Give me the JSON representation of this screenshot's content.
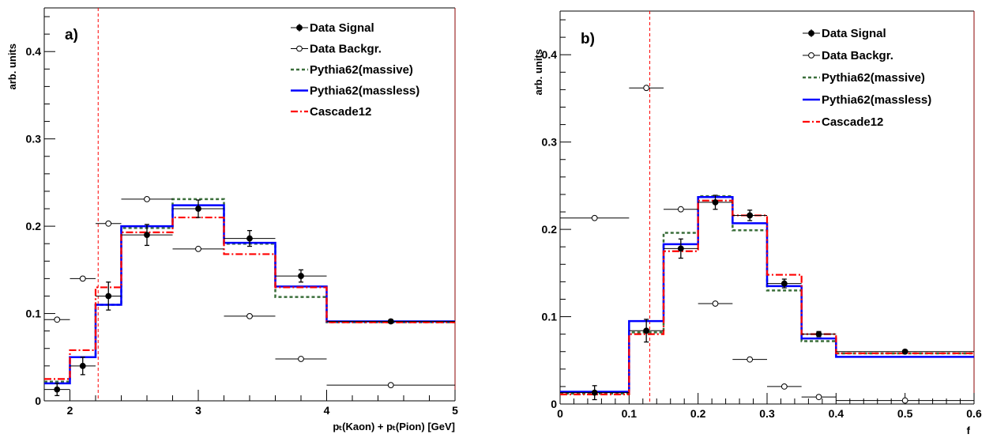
{
  "chart_data": [
    {
      "panel_label": "a)",
      "type": "line",
      "xlabel": "pₜ(Kaon) + pₜ(Pion) [GeV]",
      "ylabel": "arb. units",
      "xlim": [
        1.8,
        5
      ],
      "ylim": [
        0,
        0.45
      ],
      "x_ticks": [
        2,
        3,
        4,
        5
      ],
      "y_ticks": [
        0,
        0.1,
        0.2,
        0.3,
        0.4
      ],
      "x_tick_labels": [
        "2",
        "3",
        "4",
        "5"
      ],
      "y_tick_labels": [
        "0",
        "0.1",
        "0.2",
        "0.3",
        "0.4"
      ],
      "cut_line_x": 2.22,
      "bin_edges": [
        1.8,
        2.0,
        2.2,
        2.4,
        2.8,
        3.2,
        3.6,
        4.0,
        5.0
      ],
      "legend": {
        "position": "top-right",
        "entries": [
          "Data Signal",
          "Data Backgr.",
          "Pythia62(massive)",
          "Pythia62(massless)",
          "Cascade12"
        ]
      },
      "series": [
        {
          "name": "Data Signal",
          "style": "filled-marker",
          "color": "#000000",
          "points": [
            {
              "x": 1.9,
              "y": 0.013,
              "xerr": 0.1,
              "yerr": 0.007
            },
            {
              "x": 2.1,
              "y": 0.04,
              "xerr": 0.1,
              "yerr": 0.01
            },
            {
              "x": 2.3,
              "y": 0.12,
              "xerr": 0.1,
              "yerr": 0.016
            },
            {
              "x": 2.6,
              "y": 0.19,
              "xerr": 0.2,
              "yerr": 0.012
            },
            {
              "x": 3.0,
              "y": 0.22,
              "xerr": 0.2,
              "yerr": 0.01
            },
            {
              "x": 3.4,
              "y": 0.186,
              "xerr": 0.2,
              "yerr": 0.009
            },
            {
              "x": 3.8,
              "y": 0.143,
              "xerr": 0.2,
              "yerr": 0.007
            },
            {
              "x": 4.5,
              "y": 0.091,
              "xerr": 0.5,
              "yerr": 0.002
            }
          ]
        },
        {
          "name": "Data Backgr.",
          "style": "open-marker",
          "color": "#000000",
          "points": [
            {
              "x": 1.9,
              "y": 0.093,
              "xerr": 0.1
            },
            {
              "x": 2.1,
              "y": 0.14,
              "xerr": 0.1
            },
            {
              "x": 2.3,
              "y": 0.203,
              "xerr": 0.1
            },
            {
              "x": 2.6,
              "y": 0.231,
              "xerr": 0.2
            },
            {
              "x": 3.0,
              "y": 0.174,
              "xerr": 0.2
            },
            {
              "x": 3.4,
              "y": 0.097,
              "xerr": 0.2
            },
            {
              "x": 3.8,
              "y": 0.048,
              "xerr": 0.2
            },
            {
              "x": 4.5,
              "y": 0.018,
              "xerr": 0.5
            }
          ]
        },
        {
          "name": "Pythia62(massive)",
          "style": "dotted-hist",
          "color": "#3a6e3a",
          "values": [
            0.022,
            0.05,
            0.11,
            0.198,
            0.231,
            0.18,
            0.119,
            0.09
          ]
        },
        {
          "name": "Pythia62(massless)",
          "style": "solid-hist",
          "color": "#0000ff",
          "values": [
            0.02,
            0.05,
            0.11,
            0.2,
            0.224,
            0.181,
            0.131,
            0.091
          ]
        },
        {
          "name": "Cascade12",
          "style": "dashdot-hist",
          "color": "#ff0000",
          "values": [
            0.025,
            0.058,
            0.13,
            0.193,
            0.21,
            0.168,
            0.13,
            0.09
          ]
        }
      ]
    },
    {
      "panel_label": "b)",
      "type": "line",
      "xlabel": "f",
      "ylabel": "arb. units",
      "xlim": [
        0,
        0.6
      ],
      "ylim": [
        0,
        0.45
      ],
      "x_ticks": [
        0,
        0.1,
        0.2,
        0.3,
        0.4,
        0.5,
        0.6
      ],
      "y_ticks": [
        0,
        0.1,
        0.2,
        0.3,
        0.4
      ],
      "x_tick_labels": [
        "0",
        "0.1",
        "0.2",
        "0.3",
        "0.4",
        "0.5",
        "0.6"
      ],
      "y_tick_labels": [
        "0",
        "0.1",
        "0.2",
        "0.3",
        "0.4"
      ],
      "cut_line_x": 0.13,
      "bin_edges": [
        0,
        0.1,
        0.15,
        0.2,
        0.25,
        0.3,
        0.35,
        0.4,
        0.6
      ],
      "legend": {
        "position": "top-right",
        "entries": [
          "Data Signal",
          "Data Backgr.",
          "Pythia62(massive)",
          "Pythia62(massless)",
          "Cascade12"
        ]
      },
      "series": [
        {
          "name": "Data Signal",
          "style": "filled-marker",
          "color": "#000000",
          "points": [
            {
              "x": 0.05,
              "y": 0.013,
              "xerr": 0.05,
              "yerr": 0.008
            },
            {
              "x": 0.125,
              "y": 0.084,
              "xerr": 0.025,
              "yerr": 0.013
            },
            {
              "x": 0.175,
              "y": 0.178,
              "xerr": 0.025,
              "yerr": 0.011
            },
            {
              "x": 0.225,
              "y": 0.231,
              "xerr": 0.025,
              "yerr": 0.008
            },
            {
              "x": 0.275,
              "y": 0.216,
              "xerr": 0.025,
              "yerr": 0.006
            },
            {
              "x": 0.325,
              "y": 0.138,
              "xerr": 0.025,
              "yerr": 0.005
            },
            {
              "x": 0.375,
              "y": 0.08,
              "xerr": 0.025,
              "yerr": 0.003
            },
            {
              "x": 0.5,
              "y": 0.06,
              "xerr": 0.1,
              "yerr": 0.002
            }
          ]
        },
        {
          "name": "Data Backgr.",
          "style": "open-marker",
          "color": "#000000",
          "points": [
            {
              "x": 0.05,
              "y": 0.213,
              "xerr": 0.05
            },
            {
              "x": 0.125,
              "y": 0.362,
              "xerr": 0.025
            },
            {
              "x": 0.175,
              "y": 0.223,
              "xerr": 0.025
            },
            {
              "x": 0.225,
              "y": 0.115,
              "xerr": 0.025
            },
            {
              "x": 0.275,
              "y": 0.051,
              "xerr": 0.025
            },
            {
              "x": 0.325,
              "y": 0.02,
              "xerr": 0.025
            },
            {
              "x": 0.375,
              "y": 0.008,
              "xerr": 0.025
            },
            {
              "x": 0.5,
              "y": 0.004,
              "xerr": 0.1
            }
          ]
        },
        {
          "name": "Pythia62(massive)",
          "style": "dotted-hist",
          "color": "#3a6e3a",
          "values": [
            0.012,
            0.082,
            0.196,
            0.238,
            0.199,
            0.13,
            0.072,
            0.058
          ]
        },
        {
          "name": "Pythia62(massless)",
          "style": "solid-hist",
          "color": "#0000ff",
          "values": [
            0.014,
            0.095,
            0.183,
            0.237,
            0.207,
            0.135,
            0.075,
            0.054
          ]
        },
        {
          "name": "Cascade12",
          "style": "dashdot-hist",
          "color": "#ff0000",
          "values": [
            0.011,
            0.08,
            0.175,
            0.233,
            0.216,
            0.148,
            0.08,
            0.058
          ]
        }
      ]
    }
  ]
}
